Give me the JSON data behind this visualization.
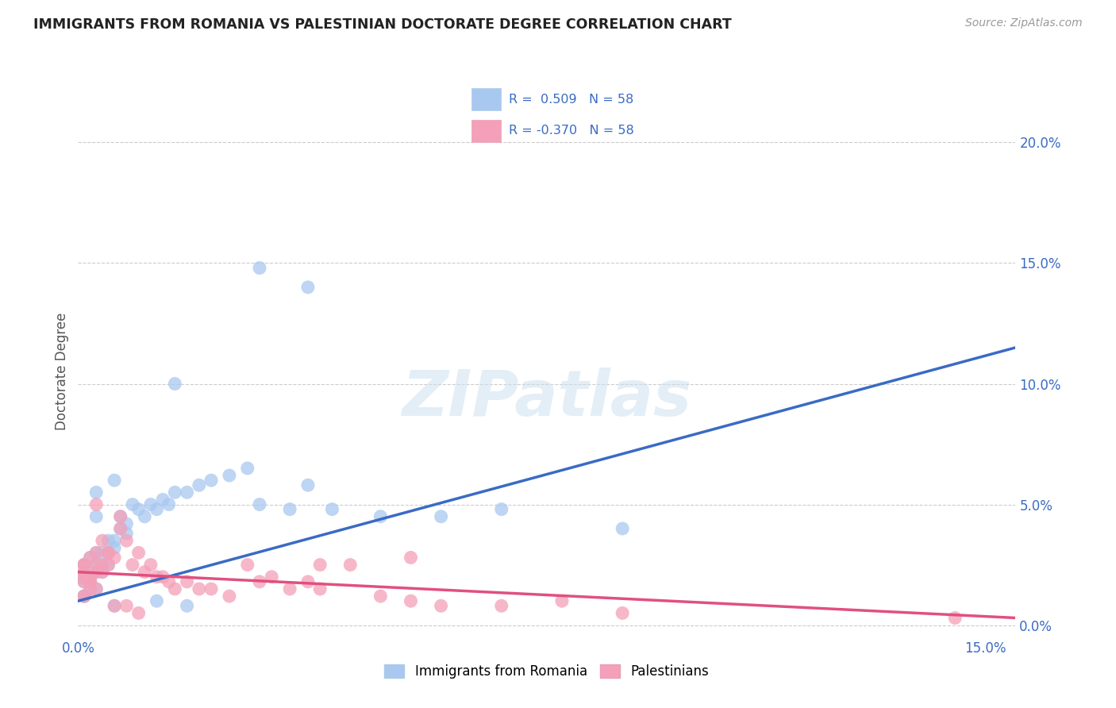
{
  "title": "IMMIGRANTS FROM ROMANIA VS PALESTINIAN DOCTORATE DEGREE CORRELATION CHART",
  "source": "Source: ZipAtlas.com",
  "ylabel": "Doctorate Degree",
  "xlim": [
    0.0,
    0.155
  ],
  "ylim": [
    -0.005,
    0.215
  ],
  "ytick_vals": [
    0.0,
    0.05,
    0.1,
    0.15,
    0.2
  ],
  "xtick_vals": [
    0.0,
    0.05,
    0.1,
    0.15
  ],
  "xtick_labels": [
    "0.0%",
    "",
    "",
    "15.0%"
  ],
  "legend": {
    "romania_r": "0.509",
    "romania_n": "58",
    "palestine_r": "-0.370",
    "palestine_n": "58"
  },
  "watermark": "ZIPatlas",
  "romania_color": "#a8c8f0",
  "romania_line_color": "#3a6bc4",
  "palestine_color": "#f4a0b8",
  "palestine_line_color": "#e05080",
  "romania_points": [
    [
      0.0005,
      0.02
    ],
    [
      0.001,
      0.025
    ],
    [
      0.001,
      0.018
    ],
    [
      0.001,
      0.022
    ],
    [
      0.002,
      0.015
    ],
    [
      0.001,
      0.012
    ],
    [
      0.002,
      0.02
    ],
    [
      0.002,
      0.018
    ],
    [
      0.001,
      0.025
    ],
    [
      0.003,
      0.022
    ],
    [
      0.002,
      0.018
    ],
    [
      0.003,
      0.015
    ],
    [
      0.002,
      0.028
    ],
    [
      0.001,
      0.012
    ],
    [
      0.003,
      0.03
    ],
    [
      0.003,
      0.025
    ],
    [
      0.004,
      0.025
    ],
    [
      0.004,
      0.03
    ],
    [
      0.003,
      0.045
    ],
    [
      0.005,
      0.03
    ],
    [
      0.005,
      0.025
    ],
    [
      0.004,
      0.022
    ],
    [
      0.005,
      0.035
    ],
    [
      0.006,
      0.035
    ],
    [
      0.006,
      0.032
    ],
    [
      0.007,
      0.04
    ],
    [
      0.007,
      0.045
    ],
    [
      0.008,
      0.042
    ],
    [
      0.008,
      0.038
    ],
    [
      0.009,
      0.05
    ],
    [
      0.01,
      0.048
    ],
    [
      0.011,
      0.045
    ],
    [
      0.012,
      0.05
    ],
    [
      0.013,
      0.048
    ],
    [
      0.014,
      0.052
    ],
    [
      0.015,
      0.05
    ],
    [
      0.016,
      0.055
    ],
    [
      0.018,
      0.055
    ],
    [
      0.02,
      0.058
    ],
    [
      0.022,
      0.06
    ],
    [
      0.025,
      0.062
    ],
    [
      0.028,
      0.065
    ],
    [
      0.003,
      0.055
    ],
    [
      0.006,
      0.06
    ],
    [
      0.03,
      0.05
    ],
    [
      0.035,
      0.048
    ],
    [
      0.038,
      0.058
    ],
    [
      0.042,
      0.048
    ],
    [
      0.05,
      0.045
    ],
    [
      0.06,
      0.045
    ],
    [
      0.07,
      0.048
    ],
    [
      0.09,
      0.04
    ],
    [
      0.016,
      0.1
    ],
    [
      0.03,
      0.148
    ],
    [
      0.038,
      0.14
    ],
    [
      0.013,
      0.01
    ],
    [
      0.018,
      0.008
    ],
    [
      0.006,
      0.008
    ]
  ],
  "palestine_points": [
    [
      0.0005,
      0.02
    ],
    [
      0.001,
      0.025
    ],
    [
      0.001,
      0.018
    ],
    [
      0.001,
      0.022
    ],
    [
      0.002,
      0.015
    ],
    [
      0.001,
      0.012
    ],
    [
      0.002,
      0.02
    ],
    [
      0.002,
      0.018
    ],
    [
      0.001,
      0.025
    ],
    [
      0.003,
      0.022
    ],
    [
      0.002,
      0.018
    ],
    [
      0.003,
      0.015
    ],
    [
      0.002,
      0.028
    ],
    [
      0.001,
      0.012
    ],
    [
      0.003,
      0.03
    ],
    [
      0.003,
      0.025
    ],
    [
      0.004,
      0.025
    ],
    [
      0.004,
      0.035
    ],
    [
      0.003,
      0.05
    ],
    [
      0.005,
      0.03
    ],
    [
      0.005,
      0.025
    ],
    [
      0.004,
      0.022
    ],
    [
      0.005,
      0.03
    ],
    [
      0.006,
      0.028
    ],
    [
      0.007,
      0.045
    ],
    [
      0.007,
      0.04
    ],
    [
      0.008,
      0.035
    ],
    [
      0.009,
      0.025
    ],
    [
      0.01,
      0.03
    ],
    [
      0.011,
      0.022
    ],
    [
      0.012,
      0.025
    ],
    [
      0.013,
      0.02
    ],
    [
      0.014,
      0.02
    ],
    [
      0.015,
      0.018
    ],
    [
      0.016,
      0.015
    ],
    [
      0.018,
      0.018
    ],
    [
      0.02,
      0.015
    ],
    [
      0.022,
      0.015
    ],
    [
      0.025,
      0.012
    ],
    [
      0.028,
      0.025
    ],
    [
      0.03,
      0.018
    ],
    [
      0.032,
      0.02
    ],
    [
      0.035,
      0.015
    ],
    [
      0.038,
      0.018
    ],
    [
      0.04,
      0.015
    ],
    [
      0.045,
      0.025
    ],
    [
      0.05,
      0.012
    ],
    [
      0.055,
      0.01
    ],
    [
      0.06,
      0.008
    ],
    [
      0.07,
      0.008
    ],
    [
      0.08,
      0.01
    ],
    [
      0.09,
      0.005
    ],
    [
      0.04,
      0.025
    ],
    [
      0.055,
      0.028
    ],
    [
      0.145,
      0.003
    ],
    [
      0.006,
      0.008
    ],
    [
      0.01,
      0.005
    ],
    [
      0.008,
      0.008
    ]
  ]
}
